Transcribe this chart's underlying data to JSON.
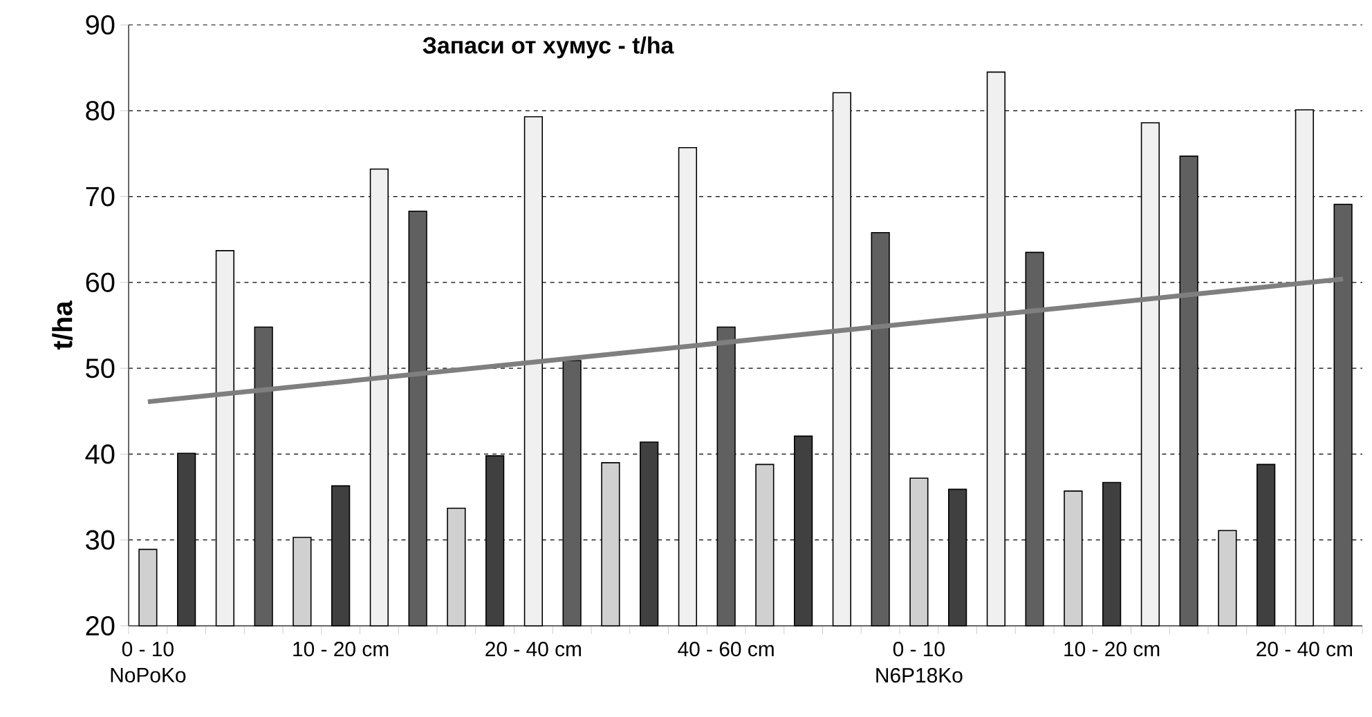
{
  "chart_data": {
    "type": "bar",
    "title": "Запаси от хумус - t/ha",
    "ylabel": "t/ha",
    "categories": [
      "0 - 10",
      null,
      null,
      null,
      null,
      "10 - 20 cm",
      null,
      null,
      null,
      null,
      "20 - 40 cm",
      null,
      null,
      null,
      null,
      "40 - 60 cm",
      null,
      null,
      null,
      null,
      "0 - 10",
      null,
      null,
      null,
      null,
      "10 - 20 cm",
      null,
      null,
      null,
      null,
      "20 - 40 cm",
      null
    ],
    "series": [
      {
        "values": [
          28.9,
          40.1,
          63.7,
          54.8,
          30.3,
          36.3,
          73.2,
          68.3,
          33.7,
          39.8,
          79.3,
          50.9,
          39.0,
          41.4,
          75.7,
          54.8,
          38.8,
          42.1,
          82.1,
          65.8,
          37.2,
          35.9,
          84.5,
          63.5,
          35.7,
          36.7,
          78.6,
          74.7,
          31.1,
          38.8,
          80.1,
          69.1
        ],
        "colors": [
          "#d0d0d0",
          "#404040",
          "#f0f0f0",
          "#606060",
          "#d0d0d0",
          "#404040",
          "#f0f0f0",
          "#606060",
          "#d0d0d0",
          "#404040",
          "#f0f0f0",
          "#606060",
          "#d0d0d0",
          "#404040",
          "#f0f0f0",
          "#606060",
          "#d0d0d0",
          "#404040",
          "#f0f0f0",
          "#606060",
          "#d0d0d0",
          "#404040",
          "#f0f0f0",
          "#606060",
          "#d0d0d0",
          "#404040",
          "#f0f0f0",
          "#606060",
          "#d0d0d0",
          "#404040",
          "#f0f0f0",
          "#606060"
        ]
      },
      {
        "type": "line",
        "values": [
          46.1,
          null,
          null,
          null,
          null,
          null,
          null,
          null,
          null,
          null,
          null,
          null,
          null,
          null,
          null,
          null,
          null,
          null,
          null,
          null,
          null,
          null,
          null,
          null,
          null,
          null,
          null,
          null,
          null,
          null,
          null,
          60.4
        ],
        "color": "#7f7f7f"
      }
    ],
    "annotations": [
      "NoPoKo",
      "N6P18Ko"
    ],
    "ylim": [
      20,
      90
    ],
    "yticks": [
      20,
      30,
      40,
      50,
      60,
      70,
      80,
      90
    ],
    "grid": "y"
  }
}
